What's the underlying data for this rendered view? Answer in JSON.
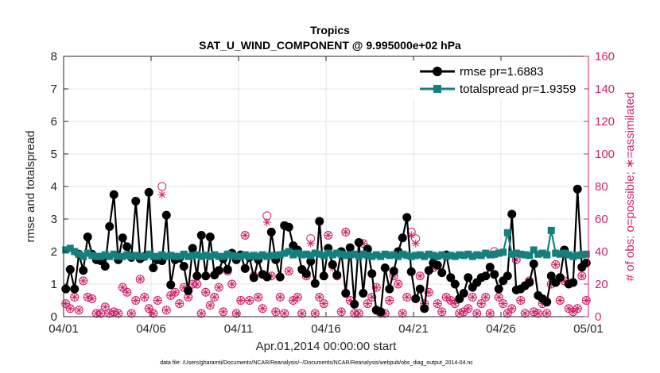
{
  "chart_data": {
    "type": "line",
    "title": "Tropics",
    "subtitle": "SAT_U_WIND_COMPONENT @ 9.995000e+02 hPa",
    "xlabel": "Apr.01,2014 00:00:00 start",
    "ylabel_left": "rmse and totalspread",
    "ylabel_right": "# of obs: o=possible; ∗=assimilated",
    "footnote": "data file: /Users/gharamti/Documents/NCAR/Reanalysis/~/Documents/NCAR/Reanalysis/webpub/obs_diag_output_2014-04.nc",
    "xlim": [
      0,
      30
    ],
    "ylim_left": [
      0,
      8
    ],
    "ylim_right": [
      0,
      160
    ],
    "x_tick_values": [
      0,
      5,
      10,
      15,
      20,
      25,
      30
    ],
    "x_tick_labels": [
      "04/01",
      "04/06",
      "04/11",
      "04/16",
      "04/21",
      "04/26",
      "05/01"
    ],
    "y_left_ticks": [
      "0",
      "1",
      "2",
      "3",
      "4",
      "5",
      "6",
      "7",
      "8"
    ],
    "y_right_ticks": [
      "0",
      "20",
      "40",
      "60",
      "80",
      "100",
      "120",
      "140",
      "160"
    ],
    "legend": [
      {
        "label": "rmse pr=1.6883"
      },
      {
        "label": "totalspread pr=1.9359"
      }
    ],
    "legend_position": "top-right",
    "colors": {
      "rmse": "#000000",
      "spread": "#13807f",
      "obs": "#d1226a",
      "axes": "#262626"
    },
    "x": [
      0.125,
      0.375,
      0.625,
      0.875,
      1.125,
      1.375,
      1.625,
      1.875,
      2.125,
      2.375,
      2.625,
      2.875,
      3.125,
      3.375,
      3.625,
      3.875,
      4.125,
      4.375,
      4.625,
      4.875,
      5.125,
      5.375,
      5.625,
      5.875,
      6.125,
      6.375,
      6.625,
      6.875,
      7.125,
      7.375,
      7.625,
      7.875,
      8.125,
      8.375,
      8.625,
      8.875,
      9.125,
      9.375,
      9.625,
      9.875,
      10.125,
      10.375,
      10.625,
      10.875,
      11.125,
      11.375,
      11.625,
      11.875,
      12.125,
      12.375,
      12.625,
      12.875,
      13.125,
      13.375,
      13.625,
      13.875,
      14.125,
      14.375,
      14.625,
      14.875,
      15.125,
      15.375,
      15.625,
      15.875,
      16.125,
      16.375,
      16.625,
      16.875,
      17.125,
      17.375,
      17.625,
      17.875,
      18.125,
      18.375,
      18.625,
      18.875,
      19.125,
      19.375,
      19.625,
      19.875,
      20.125,
      20.375,
      20.625,
      20.875,
      21.125,
      21.375,
      21.625,
      21.875,
      22.125,
      22.375,
      22.625,
      22.875,
      23.125,
      23.375,
      23.625,
      23.875,
      24.125,
      24.375,
      24.625,
      24.875,
      25.125,
      25.375,
      25.625,
      25.875,
      26.125,
      26.375,
      26.625,
      26.875,
      27.125,
      27.375,
      27.625,
      27.875,
      28.125,
      28.375,
      28.625,
      28.875,
      29.125,
      29.375,
      29.625,
      29.875
    ],
    "series": [
      {
        "name": "rmse",
        "values": [
          0.85,
          1.45,
          0.85,
          1.92,
          1.42,
          2.45,
          1.92,
          1.75,
          1.72,
          1.55,
          2.77,
          3.75,
          1.75,
          2.42,
          2.15,
          1.82,
          3.55,
          1.78,
          1.85,
          3.82,
          1.5,
          1.75,
          1.72,
          3.12,
          0.98,
          1.75,
          1.8,
          1.55,
          0.8,
          2.1,
          1.25,
          2.5,
          1.25,
          2.45,
          1.28,
          1.42,
          1.78,
          1.45,
          1.95,
          1.75,
          1.9,
          1.48,
          1.82,
          1.2,
          1.75,
          1.3,
          1.22,
          2.6,
          1.75,
          1.22,
          2.8,
          2.75,
          2.18,
          2.05,
          1.45,
          1.32,
          1.7,
          1.02,
          2.93,
          1.25,
          2.1,
          1.6,
          1.28,
          2.0,
          0.72,
          2.12,
          0.38,
          2.28,
          0.72,
          2.08,
          1.32,
          0.2,
          0.15,
          1.5,
          0.85,
          1.4,
          2.0,
          2.42,
          3.05,
          1.38,
          0.55,
          0.85,
          0.25,
          1.42,
          1.65,
          1.58,
          1.35,
          1.9,
          1.2,
          1.0,
          0.55,
          0.72,
          1.2,
          0.9,
          1.05,
          1.2,
          1.25,
          1.52,
          1.3,
          0.85,
          1.1,
          1.25,
          3.15,
          0.82,
          0.85,
          0.95,
          1.05,
          1.62,
          0.65,
          0.55,
          0.45,
          1.25,
          1.05,
          1.2,
          2.05,
          1.0,
          1.05,
          3.92,
          1.52,
          1.65
        ]
      },
      {
        "name": "totalspread",
        "values": [
          2.05,
          2.1,
          2.0,
          1.92,
          1.85,
          1.95,
          1.88,
          1.85,
          1.85,
          1.9,
          1.85,
          1.92,
          1.85,
          1.85,
          1.9,
          1.85,
          1.88,
          1.85,
          1.85,
          1.92,
          1.85,
          1.85,
          1.9,
          1.85,
          1.88,
          1.85,
          1.85,
          1.92,
          1.85,
          1.88,
          1.9,
          1.85,
          1.88,
          1.85,
          1.9,
          1.85,
          1.85,
          1.92,
          1.88,
          1.85,
          1.85,
          1.9,
          1.85,
          1.88,
          1.85,
          1.9,
          1.85,
          1.88,
          1.88,
          1.9,
          1.95,
          2.0,
          1.9,
          1.95,
          1.9,
          1.92,
          1.88,
          1.95,
          1.92,
          1.88,
          1.95,
          1.9,
          1.95,
          1.92,
          1.88,
          1.9,
          1.92,
          1.85,
          1.92,
          1.88,
          1.85,
          1.9,
          1.85,
          1.92,
          1.88,
          1.9,
          1.85,
          1.92,
          1.88,
          1.85,
          1.88,
          1.9,
          1.85,
          1.92,
          1.88,
          1.85,
          1.9,
          1.85,
          1.88,
          1.85,
          1.9,
          1.88,
          1.92,
          1.85,
          1.9,
          1.88,
          1.95,
          1.9,
          1.92,
          1.95,
          1.98,
          2.58,
          1.92,
          1.95,
          1.92,
          1.9,
          1.88,
          2.05,
          1.92,
          1.95,
          1.9,
          2.65,
          1.95,
          1.92,
          1.95,
          1.9,
          1.85,
          1.88,
          1.9,
          1.92
        ]
      },
      {
        "name": "obs_possible",
        "values": [
          8,
          5,
          12,
          4,
          22,
          12,
          11,
          2,
          2,
          6,
          2,
          3,
          2,
          18,
          15,
          2,
          10,
          23,
          12,
          5,
          2,
          10,
          80,
          4,
          13,
          15,
          8,
          18,
          12,
          20,
          20,
          2,
          15,
          7,
          12,
          18,
          3,
          28,
          20,
          2,
          10,
          50,
          10,
          25,
          12,
          5,
          62,
          25,
          3,
          12,
          2,
          28,
          10,
          12,
          2,
          25,
          48,
          2,
          12,
          8,
          50,
          32,
          25,
          3,
          52,
          10,
          2,
          2,
          45,
          8,
          12,
          18,
          2,
          2,
          10,
          25,
          20,
          2,
          12,
          52,
          48,
          25,
          8,
          15,
          30,
          8,
          3,
          12,
          10,
          8,
          2,
          3,
          5,
          12,
          2,
          8,
          12,
          2,
          40,
          12,
          8,
          2,
          5,
          35,
          10,
          2,
          22,
          3,
          2,
          8,
          2,
          20,
          32,
          10,
          22,
          5,
          3,
          5,
          25,
          10
        ]
      },
      {
        "name": "obs_assimilated",
        "values": [
          8,
          5,
          12,
          4,
          22,
          12,
          11,
          2,
          2,
          6,
          2,
          3,
          2,
          18,
          15,
          2,
          10,
          23,
          12,
          5,
          2,
          10,
          75,
          4,
          13,
          15,
          8,
          18,
          12,
          20,
          20,
          2,
          15,
          7,
          12,
          18,
          3,
          28,
          20,
          2,
          10,
          50,
          10,
          25,
          12,
          5,
          58,
          25,
          3,
          12,
          2,
          28,
          10,
          12,
          2,
          25,
          45,
          2,
          12,
          8,
          50,
          30,
          25,
          3,
          52,
          10,
          2,
          2,
          45,
          8,
          12,
          18,
          2,
          2,
          10,
          25,
          20,
          2,
          12,
          50,
          45,
          25,
          8,
          15,
          30,
          8,
          3,
          12,
          10,
          8,
          2,
          3,
          5,
          12,
          2,
          8,
          12,
          2,
          38,
          12,
          8,
          2,
          5,
          35,
          10,
          2,
          22,
          3,
          2,
          8,
          2,
          20,
          32,
          10,
          22,
          5,
          3,
          5,
          25,
          10
        ]
      }
    ]
  }
}
